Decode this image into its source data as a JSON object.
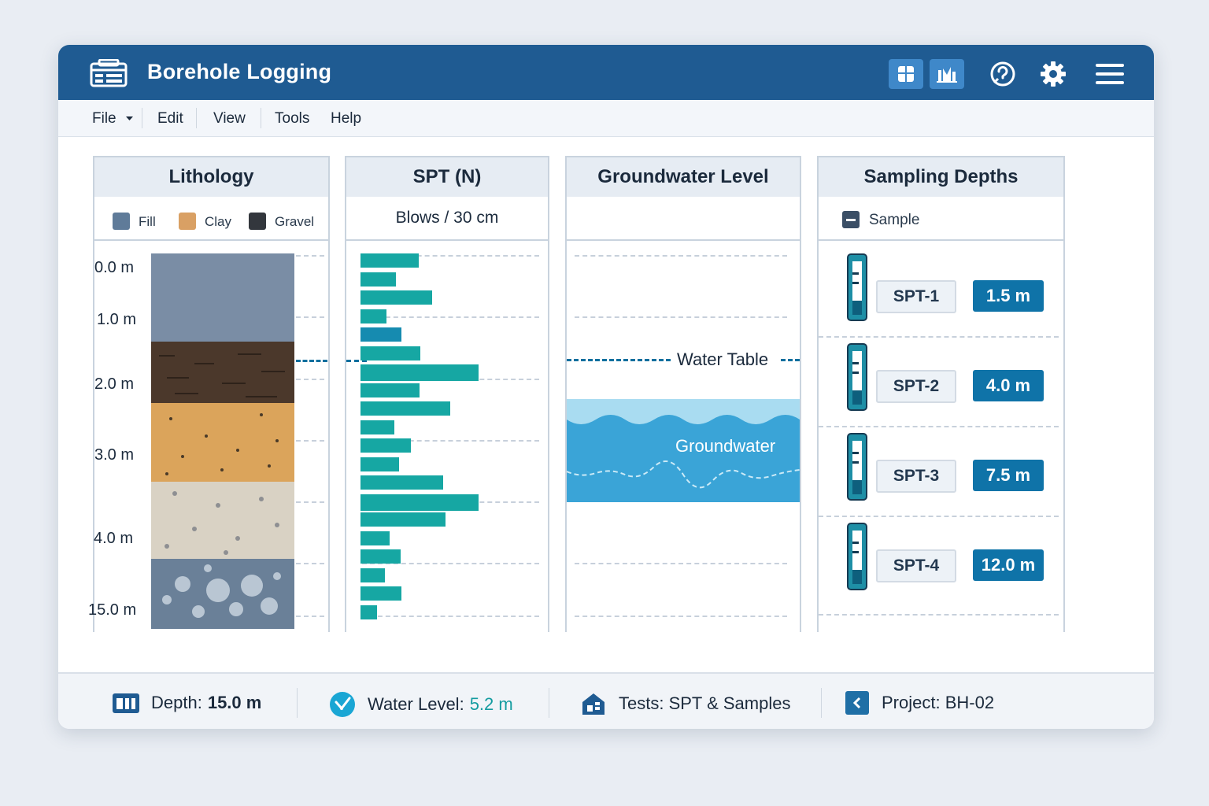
{
  "app": {
    "title": "Borehole Logging"
  },
  "menu": {
    "file": "File",
    "edit": "Edit",
    "view": "View",
    "tools": "Tools",
    "help": "Help"
  },
  "toolbar": {
    "icons": [
      "layout-icon",
      "chart-icon",
      "help-icon",
      "gear-icon",
      "hamburger-icon"
    ]
  },
  "panels": {
    "lithology": {
      "title": "Lithology",
      "legend": [
        {
          "label": "Fill",
          "color": "#5f7b99"
        },
        {
          "label": "Clay",
          "color": "#d9a064"
        },
        {
          "label": "Gravel",
          "color": "#33373d"
        }
      ],
      "depth_labels": [
        "0.0 m",
        "1.0 m",
        "2.0 m",
        "3.0 m",
        "4.0 m",
        "15.0 m"
      ]
    },
    "spt": {
      "title": "SPT (N)",
      "subtitle": "Blows / 30 cm",
      "bar_values": [
        74,
        45,
        91,
        33,
        52,
        76,
        150,
        75,
        114,
        43,
        64,
        49,
        105,
        150,
        108,
        37,
        51,
        31,
        52,
        21
      ]
    },
    "groundwater": {
      "title": "Groundwater Level",
      "water_table_label": "Water Table",
      "groundwater_label": "Groundwater"
    },
    "sampling": {
      "title": "Sampling Depths",
      "legend_label": "Sample",
      "samples": [
        {
          "id": "SPT-1",
          "depth": "1.5 m"
        },
        {
          "id": "SPT-2",
          "depth": "4.0 m"
        },
        {
          "id": "SPT-3",
          "depth": "7.5 m"
        },
        {
          "id": "SPT-4",
          "depth": "12.0 m"
        }
      ]
    }
  },
  "status": {
    "depth_label": "Depth:",
    "depth_value": "15.0 m",
    "water_label": "Water Level:",
    "water_value": "5.2 m",
    "tests": "Tests: SPT & Samples",
    "project": "Project: BH-02"
  }
}
